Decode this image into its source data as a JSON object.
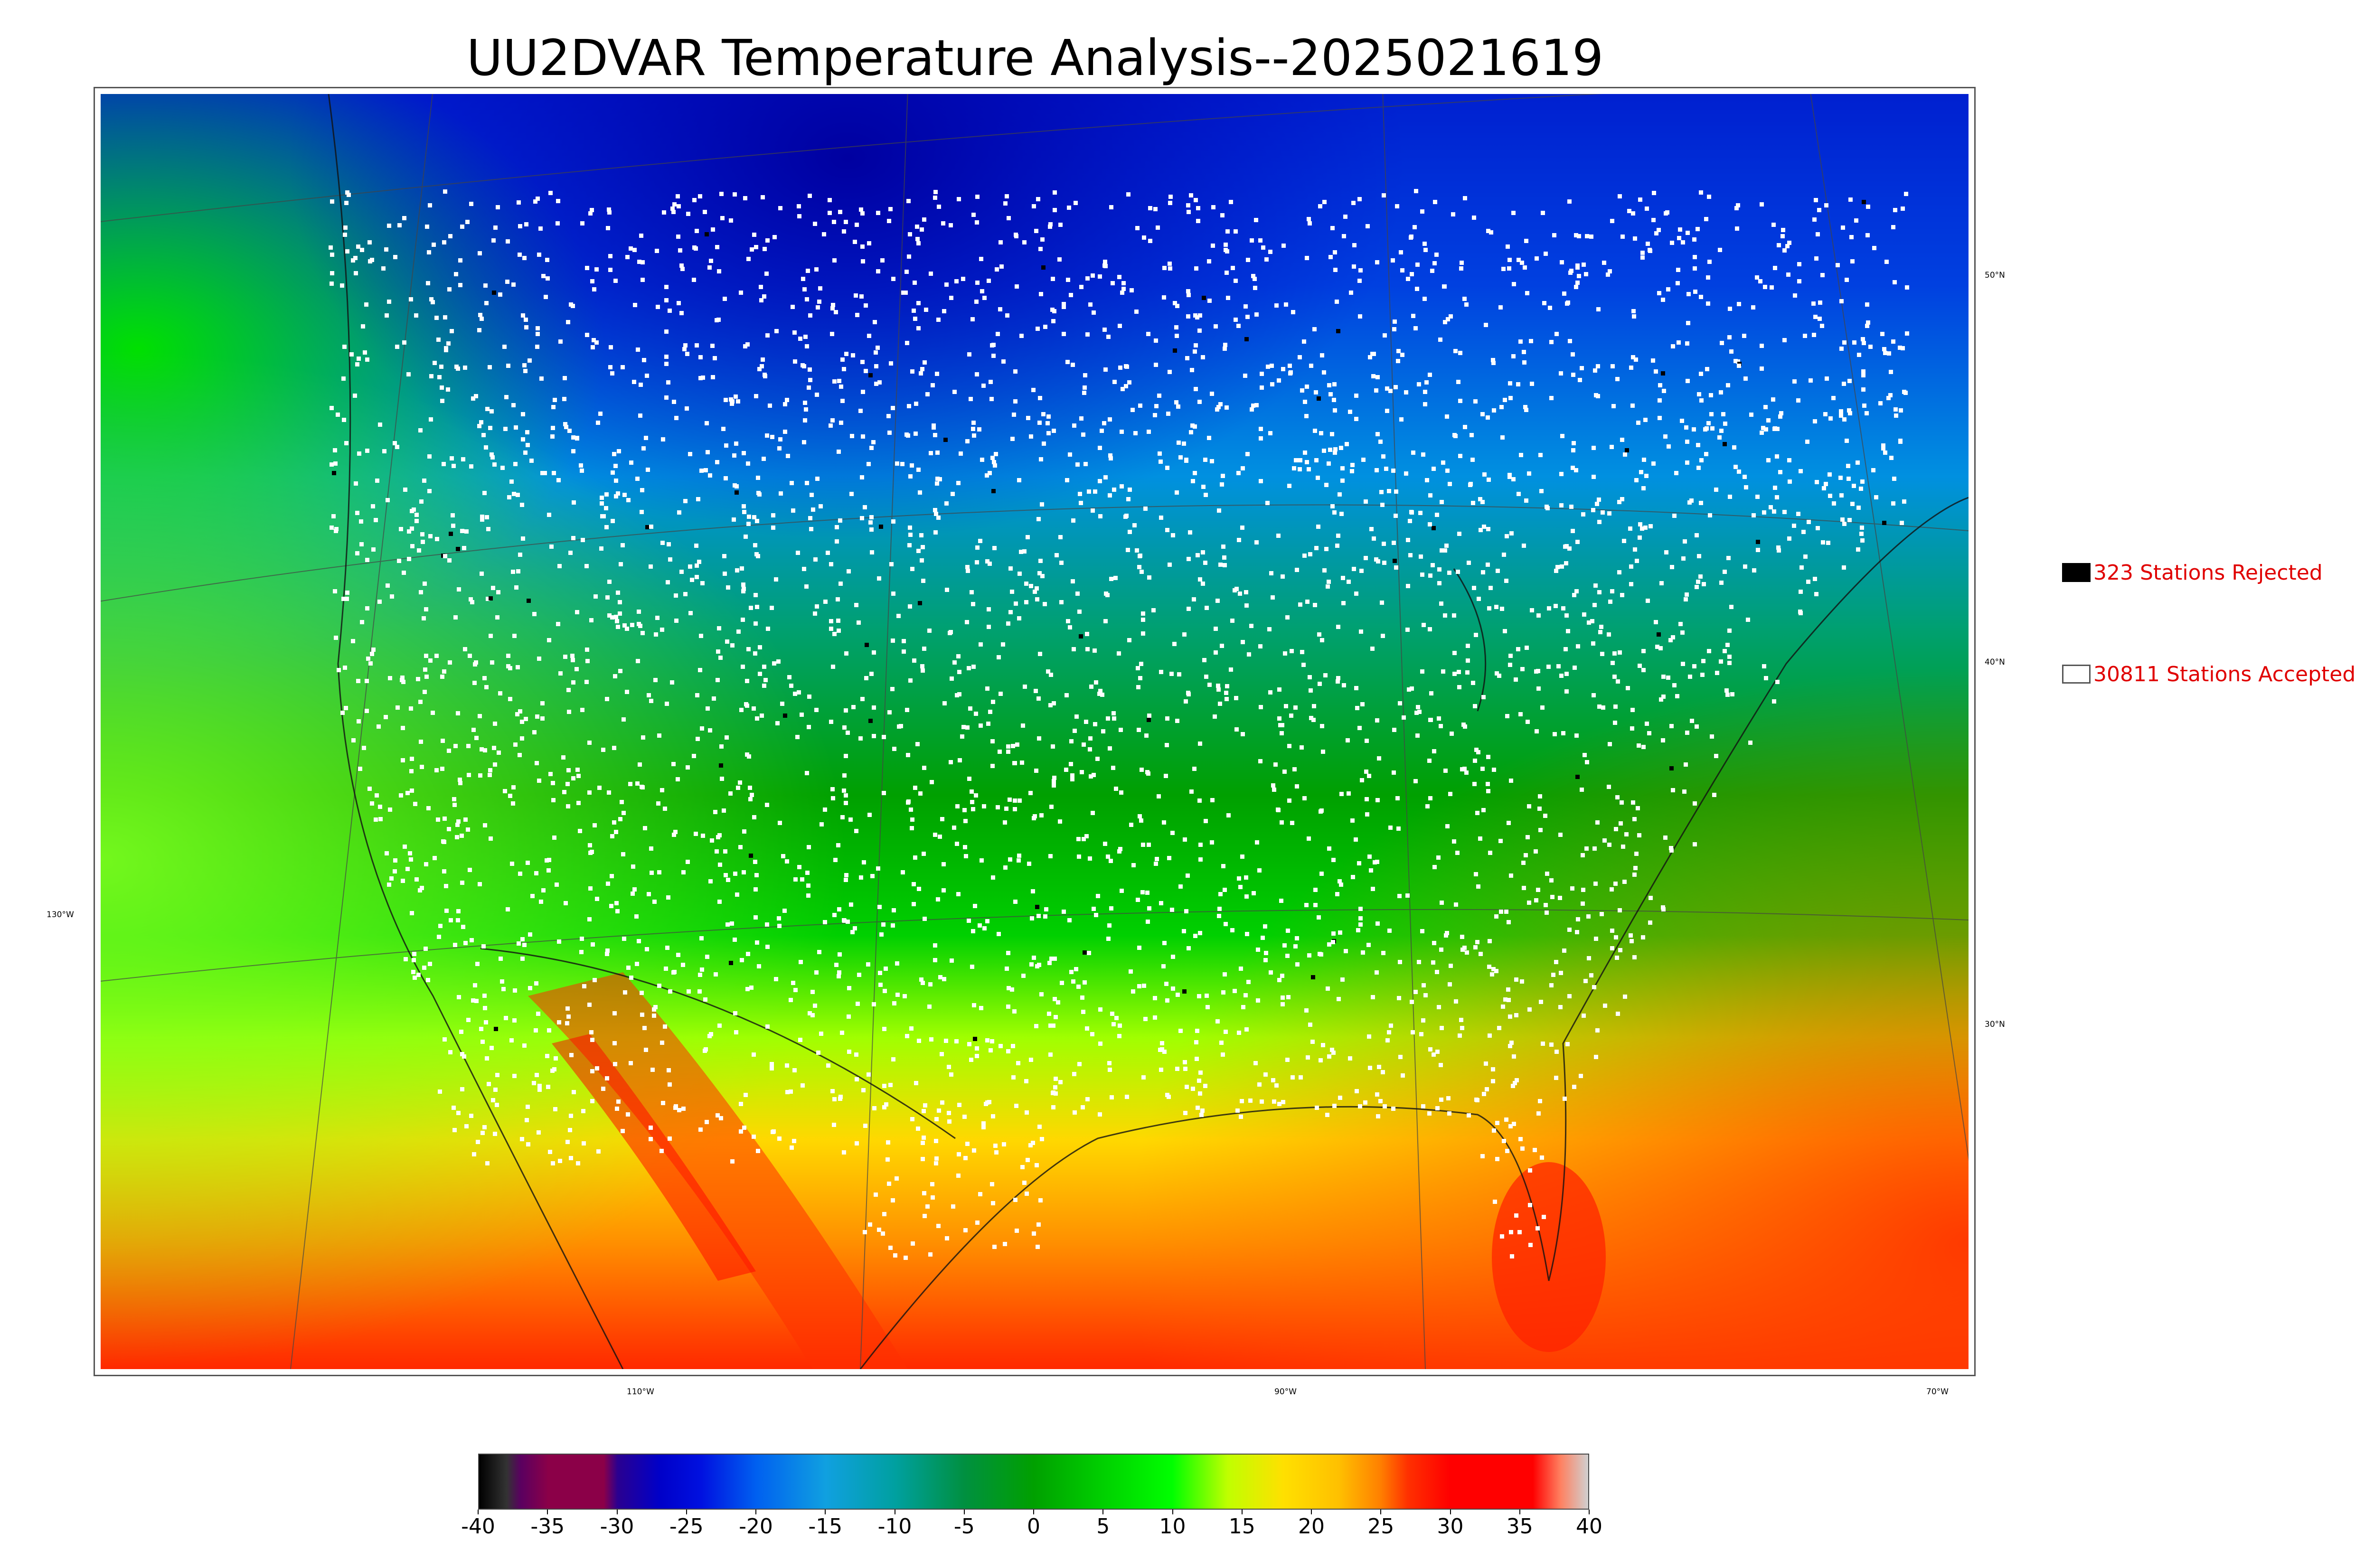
{
  "title": "UU2DVAR Temperature Analysis--2025021619",
  "legend": {
    "rejected": {
      "label": "323 Stations Rejected",
      "swatch_color": "#000000"
    },
    "accepted": {
      "label": "30811 Stations Accepted",
      "swatch_color": "#ffffff"
    }
  },
  "meridian_labels": [
    "130°W",
    "110°W",
    "90°W",
    "70°W"
  ],
  "parallel_labels": [
    "50°N",
    "40°N",
    "30°N"
  ],
  "colorbar": {
    "min": -40,
    "max": 40,
    "tick_labels": [
      "-40",
      "-35",
      "-30",
      "-25",
      "-20",
      "-15",
      "-10",
      "-5",
      "0",
      "5",
      "10",
      "15",
      "20",
      "25",
      "30",
      "35",
      "40"
    ],
    "color_stops": [
      {
        "value": -40,
        "color": "#000000"
      },
      {
        "value": -38,
        "color": "#333333"
      },
      {
        "value": -37,
        "color": "#5a0060"
      },
      {
        "value": -35,
        "color": "#8b0048"
      },
      {
        "value": -31,
        "color": "#8b0048"
      },
      {
        "value": -30,
        "color": "#2a0090"
      },
      {
        "value": -27,
        "color": "#0000c8"
      },
      {
        "value": -24,
        "color": "#0010e0"
      },
      {
        "value": -20,
        "color": "#0060f0"
      },
      {
        "value": -15,
        "color": "#10a0e0"
      },
      {
        "value": -10,
        "color": "#00a0a0"
      },
      {
        "value": -5,
        "color": "#009040"
      },
      {
        "value": 0,
        "color": "#00a000"
      },
      {
        "value": 5,
        "color": "#00d000"
      },
      {
        "value": 10,
        "color": "#00ff00"
      },
      {
        "value": 14,
        "color": "#c0ff00"
      },
      {
        "value": 18,
        "color": "#ffe000"
      },
      {
        "value": 22,
        "color": "#ffc000"
      },
      {
        "value": 25,
        "color": "#ff8000"
      },
      {
        "value": 27,
        "color": "#ff3000"
      },
      {
        "value": 30,
        "color": "#ff0000"
      },
      {
        "value": 36,
        "color": "#ff0000"
      },
      {
        "value": 38,
        "color": "#ff8060"
      },
      {
        "value": 40,
        "color": "#d0d0d0"
      }
    ]
  }
}
